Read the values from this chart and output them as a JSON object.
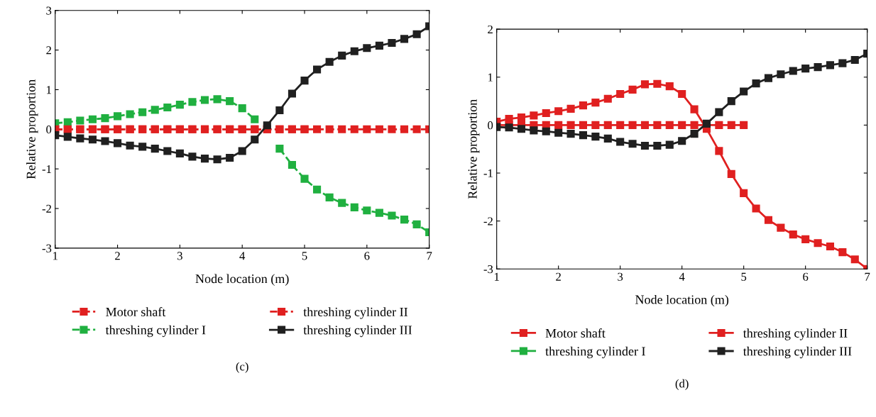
{
  "chart_data": [
    {
      "type": "line",
      "xlabel": "Node location (m)",
      "ylabel": "Relative proportion",
      "annotations": [
        "(c)"
      ],
      "x": [
        1,
        1.2,
        1.4,
        1.6,
        1.8,
        2,
        2.2,
        2.4,
        2.6,
        2.8,
        3,
        3.2,
        3.4,
        3.6,
        3.8,
        4,
        4.2,
        4.4,
        4.6,
        4.8,
        5,
        5.2,
        5.4,
        5.6,
        5.8,
        6,
        6.2,
        6.4,
        6.6,
        6.8,
        7
      ],
      "xlim": [
        1,
        7
      ],
      "xticks": [
        1,
        2,
        3,
        4,
        5,
        6,
        7
      ],
      "ylim": [
        -3,
        3
      ],
      "yticks": [
        -3,
        -2,
        -1,
        0,
        1,
        2,
        3
      ],
      "grid": false,
      "legend": "bottom",
      "marker": "square",
      "series": [
        {
          "name": "Motor shaft",
          "color": "#e02020",
          "line_style": "dashed",
          "values": [
            0,
            0,
            0,
            0,
            0,
            0,
            0,
            0,
            0,
            0,
            0,
            0,
            0,
            0,
            0,
            0,
            0,
            0,
            0,
            0,
            0,
            null,
            null,
            null,
            null,
            null,
            null,
            null,
            null,
            null,
            null
          ]
        },
        {
          "name": "threshing cylinder I",
          "color": "#20b040",
          "line_style": "dashed",
          "values": [
            0.15,
            0.18,
            0.22,
            0.25,
            0.28,
            0.33,
            0.38,
            0.43,
            0.49,
            0.55,
            0.62,
            0.69,
            0.74,
            0.76,
            0.71,
            0.53,
            0.25,
            null,
            -0.49,
            -0.9,
            -1.25,
            -1.52,
            -1.72,
            -1.86,
            -1.97,
            -2.05,
            -2.11,
            -2.18,
            -2.28,
            -2.4,
            -2.6
          ]
        },
        {
          "name": "threshing cylinder II",
          "color": "#e02020",
          "line_style": "dashed",
          "values": [
            0,
            0,
            0,
            0,
            0,
            0,
            0,
            0,
            0,
            0,
            0,
            0,
            0,
            0,
            0,
            0,
            0,
            0,
            0,
            0,
            0,
            0,
            0,
            0,
            0,
            0,
            0,
            0,
            0,
            0,
            0
          ]
        },
        {
          "name": "threshing cylinder III",
          "color": "#202020",
          "line_style": "solid",
          "values": [
            -0.15,
            -0.19,
            -0.23,
            -0.26,
            -0.3,
            -0.35,
            -0.41,
            -0.44,
            -0.49,
            -0.55,
            -0.61,
            -0.69,
            -0.74,
            -0.76,
            -0.72,
            -0.55,
            -0.26,
            0.1,
            0.48,
            0.9,
            1.23,
            1.51,
            1.7,
            1.86,
            1.97,
            2.05,
            2.11,
            2.18,
            2.28,
            2.4,
            2.6
          ]
        }
      ]
    },
    {
      "type": "line",
      "xlabel": "Node location (m)",
      "ylabel": "Relative proportion",
      "annotations": [
        "(d)"
      ],
      "x": [
        1,
        1.2,
        1.4,
        1.6,
        1.8,
        2,
        2.2,
        2.4,
        2.6,
        2.8,
        3,
        3.2,
        3.4,
        3.6,
        3.8,
        4,
        4.2,
        4.4,
        4.6,
        4.8,
        5,
        5.2,
        5.4,
        5.6,
        5.8,
        6,
        6.2,
        6.4,
        6.6,
        6.8,
        7
      ],
      "xlim": [
        1,
        7
      ],
      "xticks": [
        1,
        2,
        3,
        4,
        5,
        6,
        7
      ],
      "ylim": [
        -3,
        2
      ],
      "yticks": [
        -3,
        -2,
        -1,
        0,
        1,
        2
      ],
      "grid": false,
      "legend": "bottom",
      "marker": "square",
      "series": [
        {
          "name": "Motor shaft",
          "color": "#e02020",
          "line_style": "solid",
          "values": [
            0,
            0,
            0,
            0,
            0,
            0,
            0,
            0,
            0,
            0,
            0,
            0,
            0,
            0,
            0,
            0,
            0,
            0,
            0,
            0,
            0,
            null,
            null,
            null,
            null,
            null,
            null,
            null,
            null,
            null,
            null
          ]
        },
        {
          "name": "threshing cylinder I",
          "color": "#20b040",
          "line_style": "solid",
          "values": [
            null,
            null,
            null,
            null,
            null,
            null,
            null,
            null,
            null,
            null,
            null,
            null,
            null,
            null,
            null,
            null,
            null,
            null,
            null,
            null,
            null,
            null,
            null,
            null,
            null,
            null,
            null,
            null,
            null,
            null,
            null
          ]
        },
        {
          "name": "threshing cylinder II",
          "color": "#e02020",
          "line_style": "solid",
          "values": [
            0.07,
            0.13,
            0.16,
            0.2,
            0.25,
            0.29,
            0.34,
            0.41,
            0.47,
            0.55,
            0.65,
            0.74,
            0.85,
            0.86,
            0.81,
            0.65,
            0.33,
            -0.08,
            -0.54,
            -1.02,
            -1.42,
            -1.74,
            -1.98,
            -2.14,
            -2.28,
            -2.38,
            -2.46,
            -2.53,
            -2.65,
            -2.8,
            -3.0
          ]
        },
        {
          "name": "threshing cylinder III",
          "color": "#202020",
          "line_style": "solid",
          "values": [
            -0.04,
            -0.05,
            -0.08,
            -0.11,
            -0.13,
            -0.16,
            -0.18,
            -0.21,
            -0.24,
            -0.28,
            -0.35,
            -0.39,
            -0.43,
            -0.43,
            -0.41,
            -0.33,
            -0.18,
            0.03,
            0.27,
            0.5,
            0.7,
            0.87,
            0.98,
            1.06,
            1.13,
            1.18,
            1.21,
            1.25,
            1.29,
            1.36,
            1.49
          ]
        }
      ]
    }
  ]
}
